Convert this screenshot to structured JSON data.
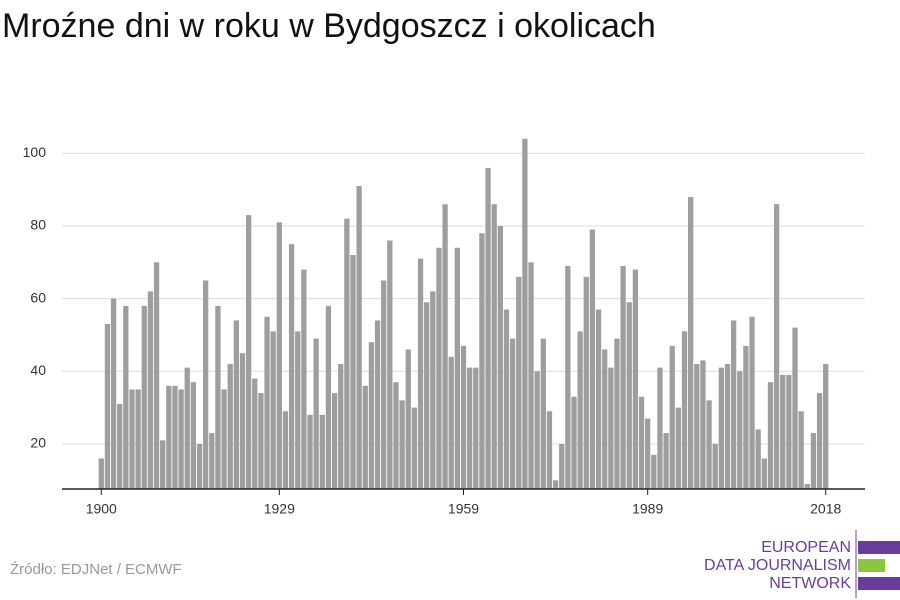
{
  "chart_data": {
    "type": "bar",
    "title": "Mroźne dni w roku w Bydgoszcz i okolicach",
    "x": [
      1900,
      1901,
      1902,
      1903,
      1904,
      1905,
      1906,
      1907,
      1908,
      1909,
      1910,
      1911,
      1912,
      1913,
      1914,
      1915,
      1916,
      1917,
      1918,
      1919,
      1920,
      1921,
      1922,
      1923,
      1924,
      1925,
      1926,
      1927,
      1928,
      1929,
      1930,
      1931,
      1932,
      1933,
      1934,
      1935,
      1936,
      1937,
      1938,
      1939,
      1940,
      1941,
      1942,
      1943,
      1944,
      1945,
      1946,
      1947,
      1948,
      1949,
      1950,
      1951,
      1952,
      1953,
      1954,
      1955,
      1956,
      1957,
      1958,
      1959,
      1960,
      1961,
      1962,
      1963,
      1964,
      1965,
      1966,
      1967,
      1968,
      1969,
      1970,
      1971,
      1972,
      1973,
      1974,
      1975,
      1976,
      1977,
      1978,
      1979,
      1980,
      1981,
      1982,
      1983,
      1984,
      1985,
      1986,
      1987,
      1988,
      1989,
      1990,
      1991,
      1992,
      1993,
      1994,
      1995,
      1996,
      1997,
      1998,
      1999,
      2000,
      2001,
      2002,
      2003,
      2004,
      2005,
      2006,
      2007,
      2008,
      2009,
      2010,
      2011,
      2012,
      2013,
      2014,
      2015,
      2016,
      2017,
      2018
    ],
    "values": [
      16,
      53,
      60,
      31,
      58,
      35,
      35,
      58,
      62,
      70,
      21,
      36,
      36,
      35,
      41,
      37,
      20,
      65,
      23,
      58,
      35,
      42,
      54,
      45,
      83,
      38,
      34,
      55,
      51,
      81,
      29,
      75,
      51,
      68,
      28,
      49,
      28,
      58,
      34,
      42,
      82,
      72,
      91,
      36,
      48,
      54,
      65,
      76,
      37,
      32,
      46,
      30,
      71,
      59,
      62,
      74,
      86,
      44,
      74,
      47,
      41,
      41,
      78,
      96,
      86,
      80,
      57,
      49,
      66,
      104,
      70,
      40,
      49,
      29,
      10,
      20,
      69,
      33,
      51,
      66,
      79,
      57,
      46,
      41,
      49,
      69,
      59,
      68,
      33,
      27,
      17,
      41,
      23,
      47,
      30,
      51,
      88,
      42,
      43,
      32,
      20,
      41,
      42,
      54,
      40,
      47,
      55,
      24,
      16,
      37,
      86,
      39,
      39,
      52,
      29,
      9,
      23,
      34,
      42
    ],
    "color": "#9e9e9e",
    "xlim": [
      1893.6,
      2024.4
    ],
    "xticks": [
      1900,
      1929,
      1959,
      1989,
      2018
    ],
    "ylim": [
      7.6,
      110
    ],
    "yticks": [
      20,
      40,
      60,
      80,
      100
    ],
    "grid": true,
    "source": "Źródło: EDJNet / ECMWF"
  },
  "logo": {
    "lines": [
      "EUROPEAN",
      "DATA JOURNALISM",
      "NETWORK"
    ]
  }
}
